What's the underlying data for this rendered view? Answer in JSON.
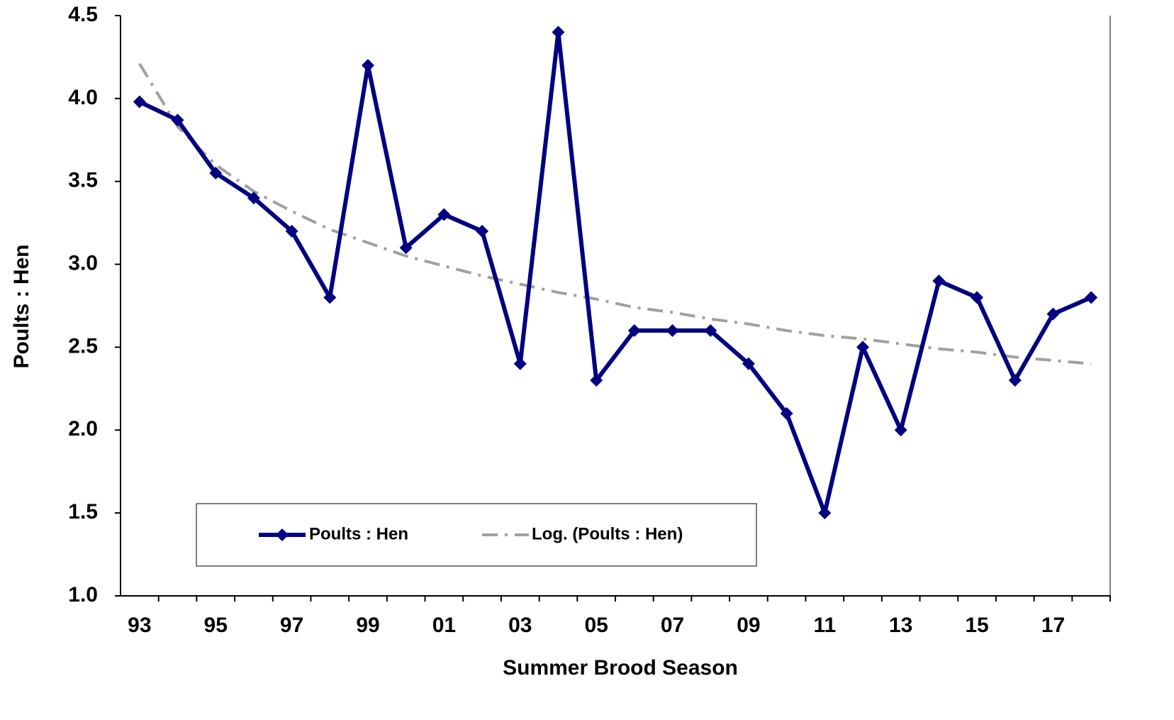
{
  "chart_data": {
    "type": "line",
    "x_label": "Summer Brood Season",
    "y_label": "Poults : Hen",
    "categories": [
      "93",
      null,
      "95",
      null,
      "97",
      null,
      "99",
      null,
      "01",
      null,
      "03",
      null,
      "05",
      null,
      "07",
      null,
      "09",
      null,
      "11",
      null,
      "13",
      null,
      "15",
      null,
      "17",
      null
    ],
    "series": [
      {
        "name": "Poults : Hen",
        "color": "#000080",
        "style": "solid",
        "marker": "diamond",
        "values": [
          3.98,
          3.87,
          3.55,
          3.4,
          3.2,
          2.8,
          4.2,
          3.1,
          3.3,
          3.2,
          2.4,
          4.4,
          2.3,
          2.6,
          2.6,
          2.6,
          2.4,
          2.1,
          1.5,
          2.5,
          2.0,
          2.9,
          2.8,
          2.3,
          2.7,
          2.8
        ]
      },
      {
        "name": "Log. (Poults : Hen)",
        "color": "#a0a0a0",
        "style": "dashdot",
        "values": [
          4.21,
          3.83,
          3.6,
          3.44,
          3.32,
          3.21,
          3.13,
          3.05,
          2.99,
          2.93,
          2.88,
          2.83,
          2.79,
          2.74,
          2.71,
          2.67,
          2.64,
          2.6,
          2.57,
          2.55,
          2.52,
          2.49,
          2.47,
          2.44,
          2.42,
          2.4
        ]
      }
    ],
    "ylim": [
      1,
      4.5
    ],
    "yticks": [
      {
        "value": 1,
        "label": "1.0"
      },
      1.5,
      {
        "value": 2,
        "label": "2.0"
      },
      2.5,
      {
        "value": 3,
        "label": "3.0"
      },
      3.5,
      {
        "value": 4,
        "label": "4.0"
      },
      4.5
    ],
    "grid": false
  }
}
